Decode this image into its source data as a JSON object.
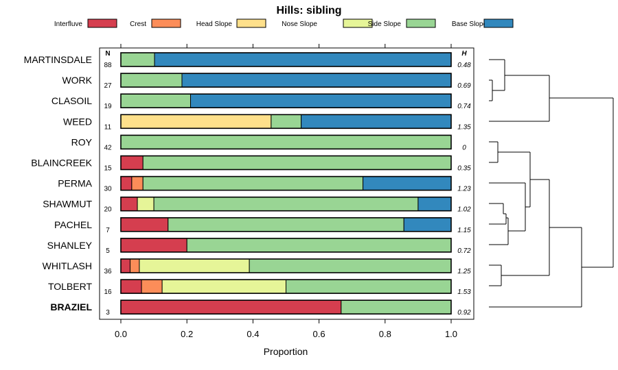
{
  "chart_data": {
    "type": "bar",
    "orientation": "horizontal-stacked",
    "title": "Hills: sibling",
    "xlabel": "Proportion",
    "xlim": [
      0,
      1
    ],
    "xticks": [
      "0.0",
      "0.2",
      "0.4",
      "0.6",
      "0.8",
      "1.0"
    ],
    "n_header": "N",
    "h_header": "H",
    "legend": [
      {
        "name": "Interfluve",
        "color": "#d53e4f"
      },
      {
        "name": "Crest",
        "color": "#fc8d59"
      },
      {
        "name": "Head Slope",
        "color": "#fee08b"
      },
      {
        "name": "Nose Slope",
        "color": "#e6f598"
      },
      {
        "name": "Side Slope",
        "color": "#99d594"
      },
      {
        "name": "Base Slope",
        "color": "#3288bd"
      }
    ],
    "rows": [
      {
        "label": "MARTINSDALE",
        "n": "88",
        "h": "0.48",
        "bold": false,
        "values": [
          0,
          0,
          0,
          0,
          0.102,
          0.898
        ]
      },
      {
        "label": "WORK",
        "n": "27",
        "h": "0.69",
        "bold": false,
        "values": [
          0,
          0,
          0,
          0,
          0.185,
          0.815
        ]
      },
      {
        "label": "CLASOIL",
        "n": "19",
        "h": "0.74",
        "bold": false,
        "values": [
          0,
          0,
          0,
          0,
          0.211,
          0.789
        ]
      },
      {
        "label": "WEED",
        "n": "11",
        "h": "1.35",
        "bold": false,
        "values": [
          0,
          0,
          0.455,
          0,
          0.091,
          0.454
        ]
      },
      {
        "label": "ROY",
        "n": "42",
        "h": "0",
        "bold": false,
        "values": [
          0,
          0,
          0,
          0,
          1.0,
          0
        ]
      },
      {
        "label": "BLAINCREEK",
        "n": "15",
        "h": "0.35",
        "bold": false,
        "values": [
          0.067,
          0,
          0,
          0,
          0.933,
          0
        ]
      },
      {
        "label": "PERMA",
        "n": "30",
        "h": "1.23",
        "bold": false,
        "values": [
          0.033,
          0.034,
          0,
          0,
          0.666,
          0.267
        ]
      },
      {
        "label": "SHAWMUT",
        "n": "20",
        "h": "1.02",
        "bold": false,
        "values": [
          0.05,
          0,
          0,
          0.05,
          0.8,
          0.1
        ]
      },
      {
        "label": "PACHEL",
        "n": "7",
        "h": "1.15",
        "bold": false,
        "values": [
          0.143,
          0,
          0,
          0,
          0.714,
          0.143
        ]
      },
      {
        "label": "SHANLEY",
        "n": "5",
        "h": "0.72",
        "bold": false,
        "values": [
          0.2,
          0,
          0,
          0,
          0.8,
          0
        ]
      },
      {
        "label": "WHITLASH",
        "n": "36",
        "h": "1.25",
        "bold": false,
        "values": [
          0.028,
          0.028,
          0,
          0.333,
          0.611,
          0
        ]
      },
      {
        "label": "TOLBERT",
        "n": "16",
        "h": "1.53",
        "bold": false,
        "values": [
          0.0625,
          0.0625,
          0,
          0.375,
          0.5,
          0
        ]
      },
      {
        "label": "BRAZIEL",
        "n": "3",
        "h": "0.92",
        "bold": true,
        "values": [
          0.667,
          0,
          0,
          0,
          0.333,
          0
        ]
      }
    ]
  }
}
